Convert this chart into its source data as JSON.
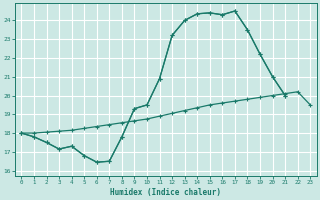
{
  "xlabel": "Humidex (Indice chaleur)",
  "bg_color": "#cce8e4",
  "grid_color": "#ffffff",
  "line_color": "#1a7a6a",
  "xlim": [
    -0.5,
    23.5
  ],
  "ylim": [
    15.7,
    24.9
  ],
  "yticks": [
    16,
    17,
    18,
    19,
    20,
    21,
    22,
    23,
    24
  ],
  "xticks": [
    0,
    1,
    2,
    3,
    4,
    5,
    6,
    7,
    8,
    9,
    10,
    11,
    12,
    13,
    14,
    15,
    16,
    17,
    18,
    19,
    20,
    21,
    22,
    23
  ],
  "line1_x": [
    0,
    1,
    2,
    3,
    4,
    5,
    6,
    7,
    8,
    9,
    10,
    11,
    12,
    13,
    14,
    15,
    16,
    17,
    18,
    19,
    20,
    21
  ],
  "line1_y": [
    18.0,
    17.8,
    17.5,
    17.15,
    17.3,
    16.8,
    16.45,
    16.5,
    17.8,
    19.3,
    19.5,
    20.9,
    23.2,
    24.0,
    24.35,
    24.4,
    24.3,
    24.5,
    23.5,
    22.2,
    21.0,
    20.0
  ],
  "line2_x": [
    0,
    1,
    2,
    3,
    4,
    5,
    6,
    7,
    8,
    9,
    10,
    11,
    12,
    13,
    14,
    15,
    16,
    17,
    18,
    19,
    20,
    21,
    22,
    23
  ],
  "line2_y": [
    18.0,
    18.0,
    18.05,
    18.1,
    18.15,
    18.25,
    18.35,
    18.45,
    18.55,
    18.65,
    18.75,
    18.9,
    19.05,
    19.2,
    19.35,
    19.5,
    19.6,
    19.7,
    19.8,
    19.9,
    20.0,
    20.1,
    20.2,
    19.5
  ],
  "line3_x": [
    0,
    1,
    2,
    3,
    4,
    5,
    6,
    7,
    8,
    9,
    10,
    11,
    12,
    13,
    14,
    15,
    16,
    17,
    18,
    19,
    20,
    21,
    22,
    23
  ],
  "line3_y": [
    18.0,
    17.8,
    17.5,
    17.15,
    17.3,
    16.8,
    16.45,
    16.5,
    17.8,
    19.3,
    19.5,
    20.9,
    23.2,
    24.0,
    24.35,
    24.4,
    24.3,
    24.5,
    23.5,
    22.2,
    21.0,
    20.0,
    null,
    null
  ]
}
